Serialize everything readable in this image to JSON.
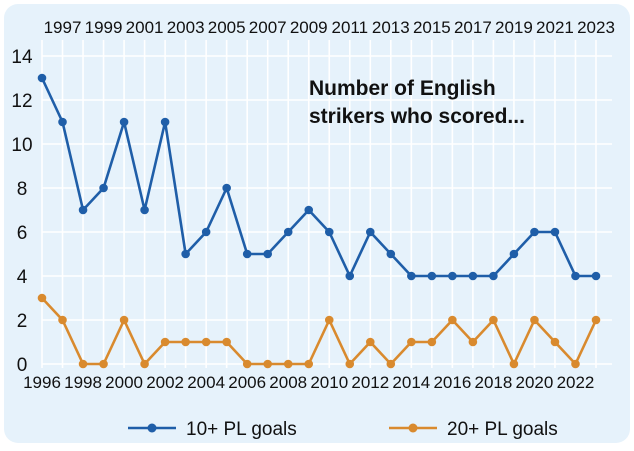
{
  "chart_data": {
    "type": "line",
    "title_lines": [
      "Number of English",
      "strikers who scored..."
    ],
    "x": [
      1996,
      1997,
      1998,
      1999,
      2000,
      2001,
      2002,
      2003,
      2004,
      2005,
      2006,
      2007,
      2008,
      2009,
      2010,
      2011,
      2012,
      2013,
      2014,
      2015,
      2016,
      2017,
      2018,
      2019,
      2020,
      2021,
      2022,
      2023
    ],
    "x_ticks_bottom": [
      1996,
      1998,
      2000,
      2002,
      2004,
      2006,
      2008,
      2010,
      2012,
      2014,
      2016,
      2018,
      2020,
      2022
    ],
    "x_ticks_top": [
      1997,
      1999,
      2001,
      2003,
      2005,
      2007,
      2009,
      2011,
      2013,
      2015,
      2017,
      2019,
      2021,
      2023
    ],
    "y_ticks": [
      0,
      2,
      4,
      6,
      8,
      10,
      12,
      14
    ],
    "ylim": [
      0,
      14
    ],
    "grid": true,
    "legend_position": "bottom",
    "series": [
      {
        "name": "10+ PL goals",
        "color": "#1f5ea8",
        "values": [
          13,
          11,
          7,
          8,
          11,
          7,
          11,
          5,
          6,
          8,
          5,
          5,
          6,
          7,
          6,
          4,
          6,
          5,
          4,
          4,
          4,
          4,
          4,
          5,
          6,
          6,
          4,
          4
        ]
      },
      {
        "name": "20+ PL goals",
        "color": "#d98a2e",
        "values": [
          3,
          2,
          0,
          0,
          2,
          0,
          1,
          1,
          1,
          1,
          0,
          0,
          0,
          0,
          2,
          0,
          1,
          0,
          1,
          1,
          2,
          1,
          2,
          0,
          2,
          1,
          0,
          2
        ]
      }
    ]
  }
}
